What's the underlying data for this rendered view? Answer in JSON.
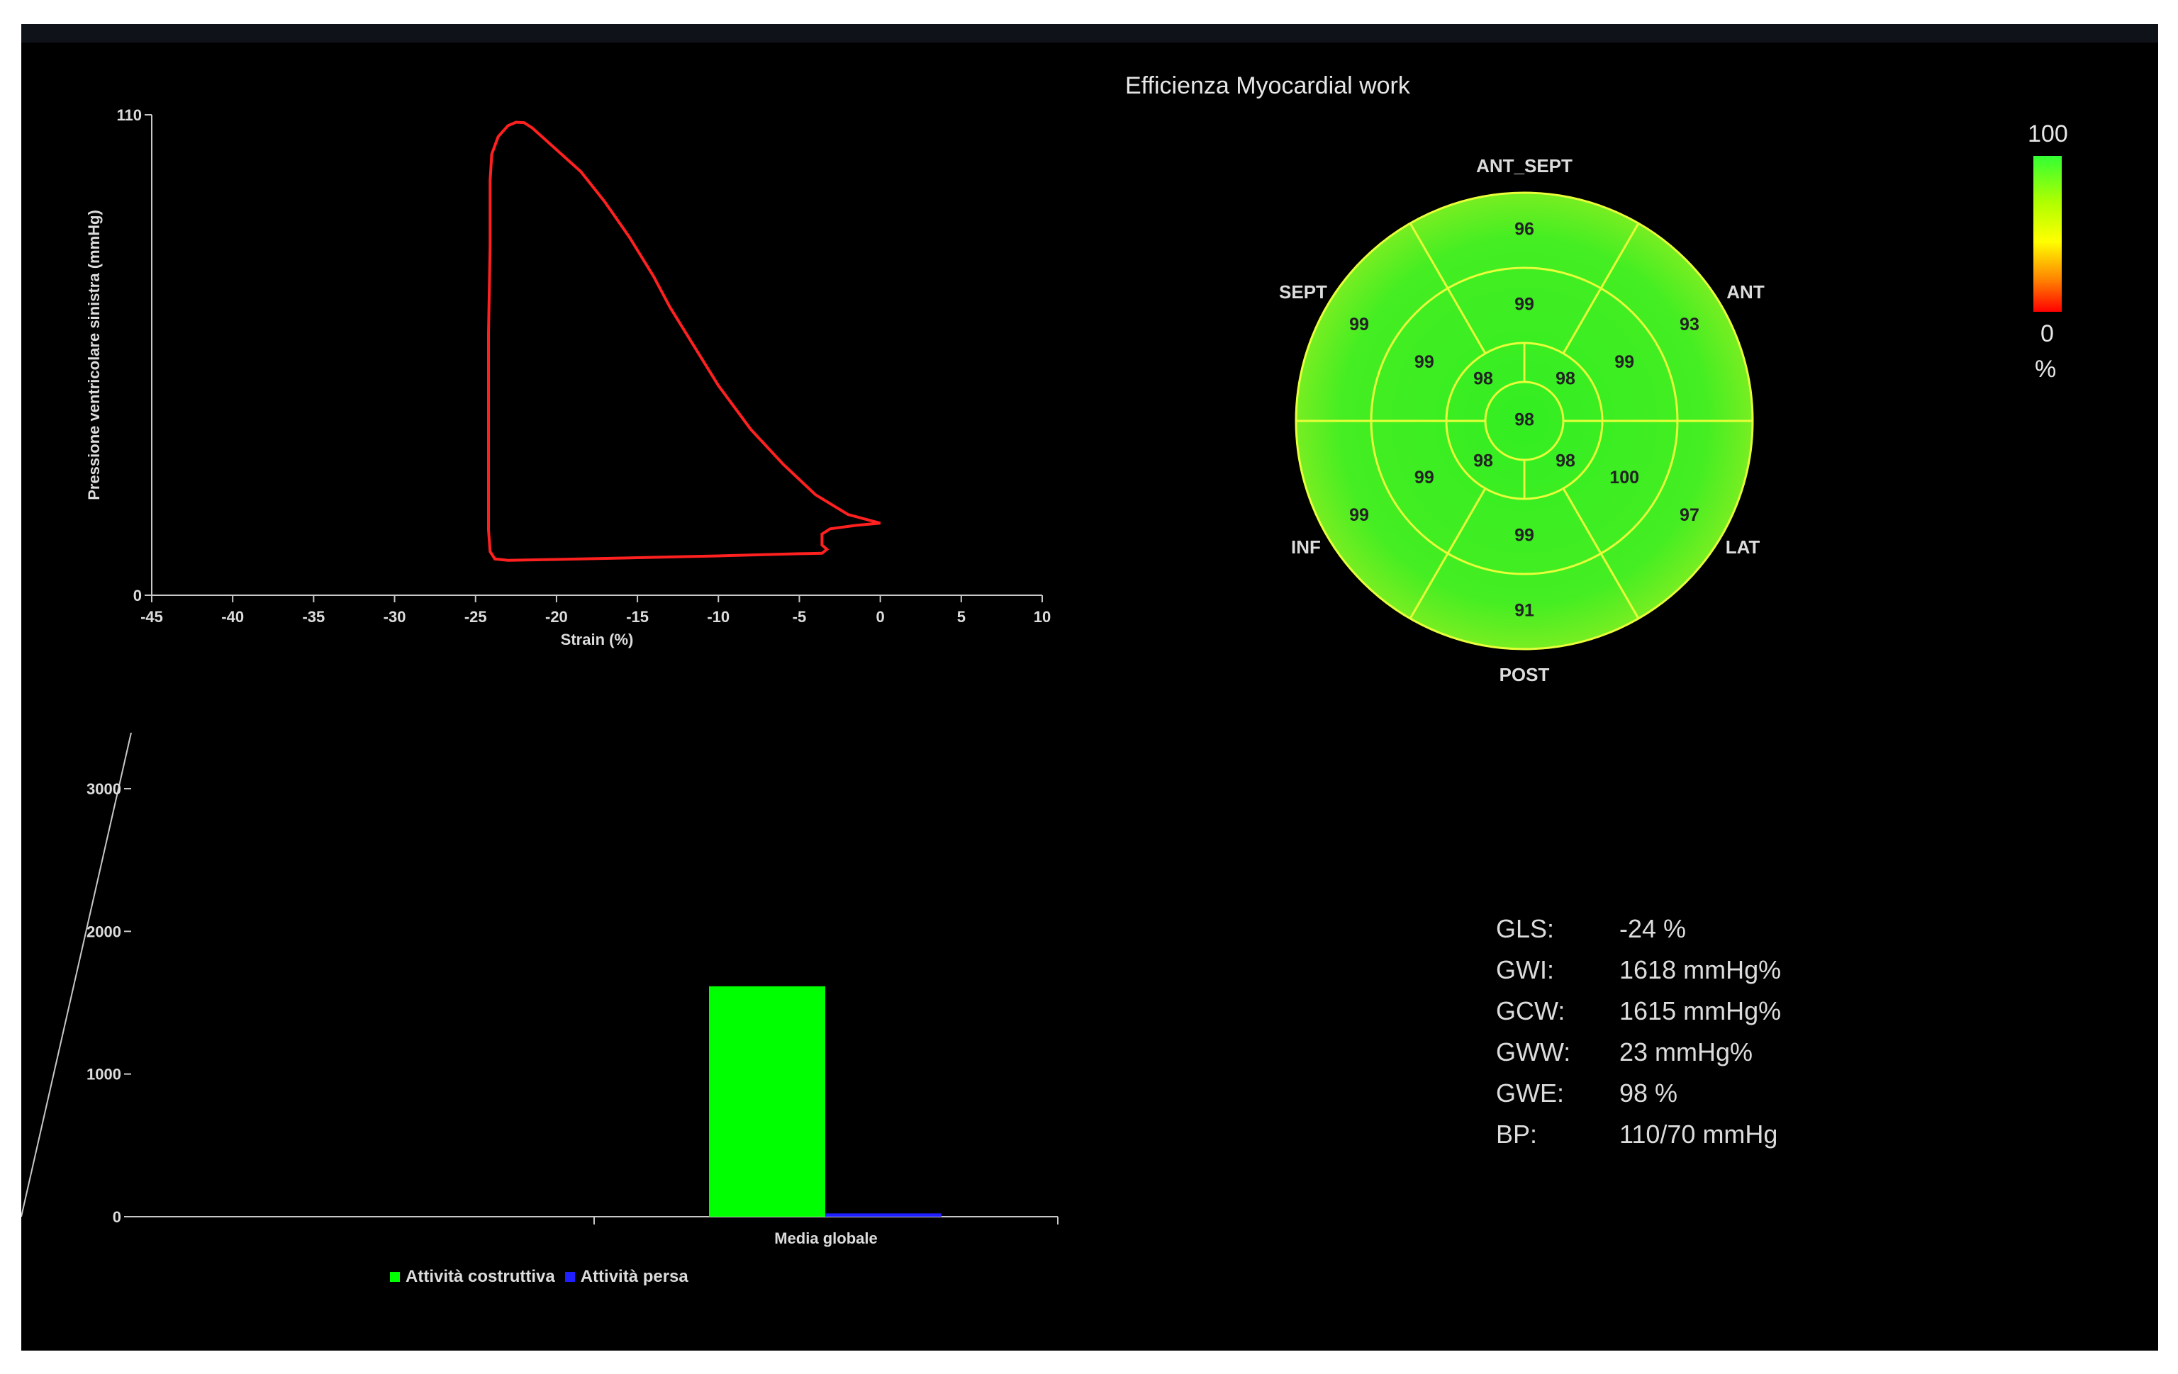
{
  "chart_data": [
    {
      "type": "line",
      "xlabel": "Strain (%)",
      "ylabel": "Pressione ventricolare sinistra (mmHg)",
      "xlim": [
        -45,
        10
      ],
      "ylim": [
        0,
        110
      ],
      "x_ticks": [
        "-45",
        "-40",
        "-35",
        "-30",
        "-25",
        "-20",
        "-15",
        "-10",
        "-5",
        "0",
        "5",
        "10"
      ],
      "y_ticks": [
        "0",
        "110"
      ],
      "color": "#ff2020",
      "loop": [
        [
          0.0,
          16.5
        ],
        [
          -2.0,
          18.5
        ],
        [
          -4.0,
          23
        ],
        [
          -6.0,
          30
        ],
        [
          -8.0,
          38
        ],
        [
          -10.0,
          48
        ],
        [
          -12.0,
          60
        ],
        [
          -13.0,
          66
        ],
        [
          -14.0,
          73
        ],
        [
          -15.5,
          82
        ],
        [
          -17.0,
          90
        ],
        [
          -18.5,
          97
        ],
        [
          -20.0,
          102
        ],
        [
          -20.9,
          105
        ],
        [
          -21.5,
          107
        ],
        [
          -22.0,
          108.2
        ],
        [
          -22.5,
          108.3
        ],
        [
          -23.0,
          107.5
        ],
        [
          -23.6,
          105
        ],
        [
          -24.0,
          101
        ],
        [
          -24.1,
          95
        ],
        [
          -24.1,
          80
        ],
        [
          -24.2,
          60
        ],
        [
          -24.2,
          40
        ],
        [
          -24.2,
          25
        ],
        [
          -24.2,
          15
        ],
        [
          -24.1,
          10
        ],
        [
          -23.8,
          8.3
        ],
        [
          -23.0,
          8.0
        ],
        [
          -20.0,
          8.2
        ],
        [
          -15.0,
          8.6
        ],
        [
          -10.0,
          9.0
        ],
        [
          -5.0,
          9.5
        ],
        [
          -3.6,
          9.6
        ],
        [
          -3.3,
          10.5
        ],
        [
          -3.6,
          11.5
        ],
        [
          -3.6,
          14
        ],
        [
          -3.1,
          15.2
        ],
        [
          -1.5,
          16
        ],
        [
          0.0,
          16.5
        ]
      ]
    },
    {
      "type": "bar",
      "categories": [
        "Media globale"
      ],
      "series": [
        {
          "name": "Attività costruttiva",
          "values": [
            1615
          ],
          "color": "#00ff00"
        },
        {
          "name": "Attività persa",
          "values": [
            23
          ],
          "color": "#1f1fff"
        }
      ],
      "ylim": [
        0,
        3000
      ],
      "y_ticks": [
        "0",
        "1000",
        "2000",
        "3000"
      ],
      "legend": "bottom"
    },
    {
      "type": "heatmap",
      "title": "Efficienza Myocardial work",
      "layout": "bullseye-17-segment",
      "regions": [
        "ANT_SEPT",
        "ANT",
        "LAT",
        "POST",
        "INF",
        "SEPT"
      ],
      "basal": [
        "96",
        "93",
        "97",
        "91",
        "99",
        "99"
      ],
      "mid": [
        "99",
        "99",
        "100",
        "99",
        "99",
        "99"
      ],
      "apical": [
        "98",
        "98",
        "98",
        "98"
      ],
      "apex": "98",
      "colorbar": {
        "max": "100",
        "min": "0",
        "unit": "%"
      }
    }
  ],
  "metrics": [
    {
      "key": "GLS:",
      "value": "-24 %"
    },
    {
      "key": "GWI:",
      "value": "1618 mmHg%"
    },
    {
      "key": "GCW:",
      "value": "1615 mmHg%"
    },
    {
      "key": "GWW:",
      "value": "23 mmHg%"
    },
    {
      "key": "GWE:",
      "value": "98 %"
    },
    {
      "key": "BP:",
      "value": "110/70 mmHg"
    }
  ],
  "colors": {
    "background": "#000000",
    "loop": "#ff2020",
    "constructive": "#00ff00",
    "wasted": "#1f1fff",
    "bullseye_line": "#e8ff3a"
  }
}
